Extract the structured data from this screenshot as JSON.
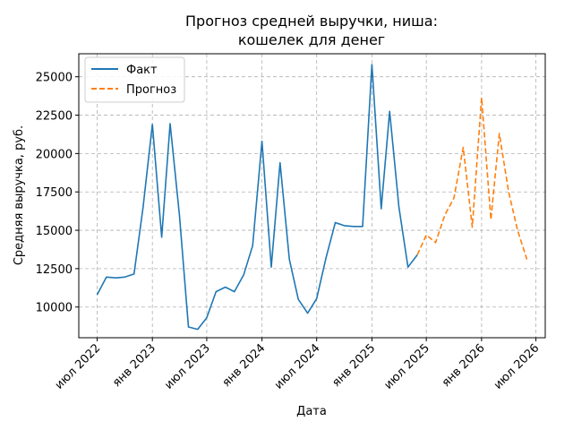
{
  "chart_data": {
    "type": "line",
    "title": [
      "Прогноз средней выручки, ниша:",
      "кошелек для денег"
    ],
    "xlabel": "Дата",
    "ylabel": "Средняя выручка, руб.",
    "ylim": [
      8000,
      26500
    ],
    "xlim": [
      "2022-05-01",
      "2026-08-01"
    ],
    "grid": true,
    "legend_position": "top-left",
    "x_ticks": [
      {
        "date": "2022-07-01",
        "label": "июл 2022"
      },
      {
        "date": "2023-01-01",
        "label": "янв 2023"
      },
      {
        "date": "2023-07-01",
        "label": "июл 2023"
      },
      {
        "date": "2024-01-01",
        "label": "янв 2024"
      },
      {
        "date": "2024-07-01",
        "label": "июл 2024"
      },
      {
        "date": "2025-01-01",
        "label": "янв 2025"
      },
      {
        "date": "2025-07-01",
        "label": "июл 2025"
      },
      {
        "date": "2026-01-01",
        "label": "янв 2026"
      },
      {
        "date": "2026-07-01",
        "label": "июл 2026"
      }
    ],
    "y_ticks": [
      {
        "value": 10000,
        "label": "10000"
      },
      {
        "value": 12500,
        "label": "12500"
      },
      {
        "value": 15000,
        "label": "15000"
      },
      {
        "value": 17500,
        "label": "17500"
      },
      {
        "value": 20000,
        "label": "20000"
      },
      {
        "value": 22500,
        "label": "22500"
      },
      {
        "value": 25000,
        "label": "25000"
      }
    ],
    "series": [
      {
        "name": "Факт",
        "color": "#1f77b4",
        "style": "solid",
        "points": [
          [
            "2022-07-01",
            10800
          ],
          [
            "2022-08-01",
            11950
          ],
          [
            "2022-09-01",
            11900
          ],
          [
            "2022-10-01",
            11950
          ],
          [
            "2022-11-01",
            12150
          ],
          [
            "2022-12-01",
            16500
          ],
          [
            "2023-01-01",
            21900
          ],
          [
            "2023-02-01",
            14550
          ],
          [
            "2023-03-01",
            21950
          ],
          [
            "2023-04-01",
            16000
          ],
          [
            "2023-05-01",
            8700
          ],
          [
            "2023-06-01",
            8550
          ],
          [
            "2023-07-01",
            9300
          ],
          [
            "2023-08-01",
            11000
          ],
          [
            "2023-09-01",
            11300
          ],
          [
            "2023-10-01",
            11000
          ],
          [
            "2023-11-01",
            12100
          ],
          [
            "2023-12-01",
            14000
          ],
          [
            "2024-01-01",
            20800
          ],
          [
            "2024-02-01",
            12600
          ],
          [
            "2024-03-01",
            19400
          ],
          [
            "2024-04-01",
            13100
          ],
          [
            "2024-05-01",
            10500
          ],
          [
            "2024-06-01",
            9600
          ],
          [
            "2024-07-01",
            10550
          ],
          [
            "2024-08-01",
            13200
          ],
          [
            "2024-09-01",
            15500
          ],
          [
            "2024-10-01",
            15300
          ],
          [
            "2024-11-01",
            15250
          ],
          [
            "2024-12-01",
            15250
          ],
          [
            "2025-01-01",
            25800
          ],
          [
            "2025-02-01",
            16400
          ],
          [
            "2025-03-01",
            22750
          ],
          [
            "2025-04-01",
            16500
          ],
          [
            "2025-05-01",
            12600
          ],
          [
            "2025-06-01",
            13400
          ]
        ]
      },
      {
        "name": "Прогноз",
        "color": "#ff7f0e",
        "style": "dashed",
        "points": [
          [
            "2025-06-01",
            13400
          ],
          [
            "2025-07-01",
            14700
          ],
          [
            "2025-08-01",
            14200
          ],
          [
            "2025-09-01",
            16000
          ],
          [
            "2025-10-01",
            17100
          ],
          [
            "2025-11-01",
            20400
          ],
          [
            "2025-12-01",
            15200
          ],
          [
            "2026-01-01",
            23650
          ],
          [
            "2026-02-01",
            15700
          ],
          [
            "2026-03-01",
            21300
          ],
          [
            "2026-04-01",
            17500
          ],
          [
            "2026-05-01",
            15000
          ],
          [
            "2026-06-01",
            13100
          ]
        ]
      }
    ]
  }
}
